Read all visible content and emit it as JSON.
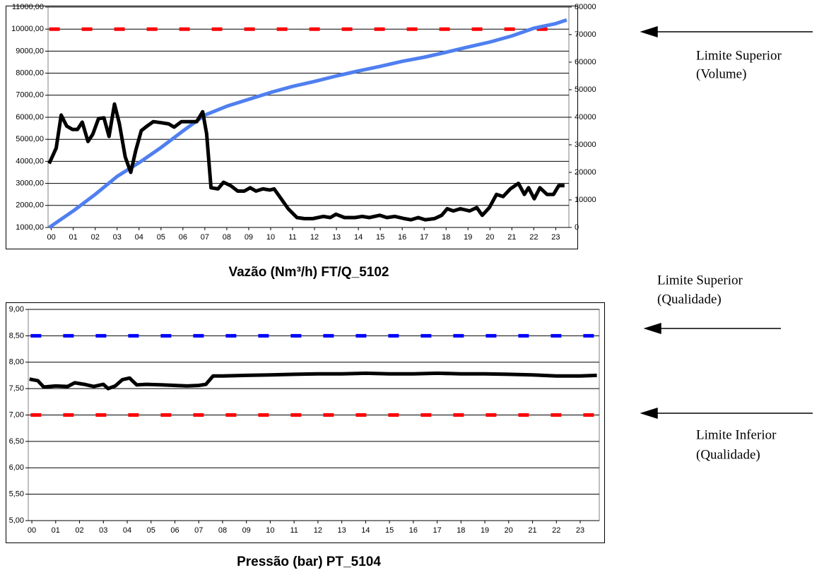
{
  "chart_data": [
    {
      "type": "line",
      "title": "Vazão (Nm³/h) FT/Q_5102",
      "xlim": [
        -0.15,
        23.6
      ],
      "xticks": [
        {
          "value": 0,
          "label": "00"
        },
        {
          "value": 1,
          "label": "01"
        },
        {
          "value": 2,
          "label": "02"
        },
        {
          "value": 3,
          "label": "03"
        },
        {
          "value": 4,
          "label": "04"
        },
        {
          "value": 5,
          "label": "05"
        },
        {
          "value": 6,
          "label": "06"
        },
        {
          "value": 7,
          "label": "07"
        },
        {
          "value": 8,
          "label": "08"
        },
        {
          "value": 9,
          "label": "09"
        },
        {
          "value": 10,
          "label": "10"
        },
        {
          "value": 11,
          "label": "11"
        },
        {
          "value": 12,
          "label": "12"
        },
        {
          "value": 13,
          "label": "13"
        },
        {
          "value": 14,
          "label": "14"
        },
        {
          "value": 15,
          "label": "15"
        },
        {
          "value": 16,
          "label": "16"
        },
        {
          "value": 17,
          "label": "17"
        },
        {
          "value": 18,
          "label": "18"
        },
        {
          "value": 19,
          "label": "19"
        },
        {
          "value": 20,
          "label": "20"
        },
        {
          "value": 21,
          "label": "21"
        },
        {
          "value": 22,
          "label": "22"
        },
        {
          "value": 23,
          "label": "23"
        }
      ],
      "ylim": [
        1000,
        11000
      ],
      "yticks": [
        {
          "value": 1000,
          "label": "1000,00"
        },
        {
          "value": 2000,
          "label": "2000,00"
        },
        {
          "value": 3000,
          "label": "3000,00"
        },
        {
          "value": 4000,
          "label": "4000,00"
        },
        {
          "value": 5000,
          "label": "5000,00"
        },
        {
          "value": 6000,
          "label": "6000,00"
        },
        {
          "value": 7000,
          "label": "7000,00"
        },
        {
          "value": 8000,
          "label": "8000,00"
        },
        {
          "value": 9000,
          "label": "9000,00"
        },
        {
          "value": 10000,
          "label": "10000,00"
        },
        {
          "value": 11000,
          "label": "11000,00"
        }
      ],
      "y2lim": [
        0,
        80000
      ],
      "y2ticks": [
        0,
        10000,
        20000,
        30000,
        40000,
        50000,
        60000,
        70000,
        80000
      ],
      "grid": true,
      "series": [
        {
          "color": "#ff0000",
          "dashed": true,
          "x": [
            -0.1,
            23.5
          ],
          "values": [
            10000,
            10000
          ]
        },
        {
          "color": "#4f7ff0",
          "axis": "y2",
          "x": [
            -0.1,
            1,
            2,
            3,
            4,
            5,
            6,
            7,
            8,
            9,
            10,
            11,
            12,
            13,
            14,
            15,
            16,
            17,
            18,
            19,
            20,
            21,
            22,
            23,
            23.5
          ],
          "values": [
            0,
            6000,
            12000,
            18500,
            23500,
            29000,
            35000,
            40800,
            44000,
            46500,
            49000,
            51200,
            53000,
            55000,
            56800,
            58500,
            60300,
            61800,
            63600,
            65500,
            67300,
            69500,
            72300,
            74000,
            75300
          ]
        },
        {
          "color": "#000000",
          "x": [
            -0.1,
            0.22,
            0.45,
            0.7,
            0.96,
            1.19,
            1.41,
            1.67,
            1.89,
            2.15,
            2.4,
            2.63,
            2.88,
            3.1,
            3.37,
            3.62,
            3.85,
            4.1,
            4.39,
            4.65,
            5.03,
            5.35,
            5.6,
            5.93,
            6.3,
            6.63,
            6.9,
            7.08,
            7.28,
            7.6,
            7.85,
            8.17,
            8.5,
            8.8,
            9.07,
            9.33,
            9.65,
            9.97,
            10.16,
            10.48,
            10.8,
            11.2,
            11.54,
            11.92,
            12.4,
            12.72,
            12.98,
            13.37,
            13.85,
            14.17,
            14.5,
            14.97,
            15.3,
            15.67,
            16.1,
            16.4,
            16.73,
            17.05,
            17.47,
            17.8,
            18.05,
            18.33,
            18.65,
            19.07,
            19.4,
            19.65,
            19.97,
            20.3,
            20.6,
            20.93,
            21.3,
            21.57,
            21.76,
            22.02,
            22.28,
            22.6,
            22.9,
            23.14,
            23.4
          ],
          "values": [
            3900,
            4600,
            6100,
            5600,
            5450,
            5450,
            5780,
            4900,
            5230,
            5940,
            5970,
            5130,
            6600,
            5710,
            4200,
            3500,
            4490,
            5390,
            5620,
            5800,
            5750,
            5700,
            5550,
            5800,
            5800,
            5800,
            6250,
            5250,
            2800,
            2750,
            3050,
            2900,
            2650,
            2650,
            2800,
            2650,
            2750,
            2700,
            2750,
            2300,
            1850,
            1450,
            1400,
            1400,
            1500,
            1450,
            1600,
            1450,
            1450,
            1500,
            1450,
            1550,
            1450,
            1500,
            1400,
            1350,
            1450,
            1350,
            1400,
            1550,
            1850,
            1750,
            1850,
            1750,
            1900,
            1550,
            1900,
            2500,
            2400,
            2750,
            3000,
            2500,
            2800,
            2300,
            2800,
            2500,
            2500,
            2900,
            2900
          ]
        }
      ]
    },
    {
      "type": "line",
      "title": "Pressão (bar) PT_5104",
      "xlim": [
        -0.15,
        23.8
      ],
      "xticks": [
        {
          "value": 0,
          "label": "00"
        },
        {
          "value": 1,
          "label": "01"
        },
        {
          "value": 2,
          "label": "02"
        },
        {
          "value": 3,
          "label": "03"
        },
        {
          "value": 4,
          "label": "04"
        },
        {
          "value": 5,
          "label": "05"
        },
        {
          "value": 6,
          "label": "06"
        },
        {
          "value": 7,
          "label": "07"
        },
        {
          "value": 8,
          "label": "08"
        },
        {
          "value": 9,
          "label": "09"
        },
        {
          "value": 10,
          "label": "10"
        },
        {
          "value": 11,
          "label": "11"
        },
        {
          "value": 12,
          "label": "12"
        },
        {
          "value": 13,
          "label": "13"
        },
        {
          "value": 14,
          "label": "14"
        },
        {
          "value": 15,
          "label": "15"
        },
        {
          "value": 16,
          "label": "16"
        },
        {
          "value": 17,
          "label": "17"
        },
        {
          "value": 18,
          "label": "18"
        },
        {
          "value": 19,
          "label": "19"
        },
        {
          "value": 20,
          "label": "20"
        },
        {
          "value": 21,
          "label": "21"
        },
        {
          "value": 22,
          "label": "22"
        },
        {
          "value": 23,
          "label": "23"
        }
      ],
      "ylim": [
        5,
        9
      ],
      "yticks": [
        {
          "value": 5,
          "label": "5,00"
        },
        {
          "value": 5.5,
          "label": "5,50"
        },
        {
          "value": 6,
          "label": "6,00"
        },
        {
          "value": 6.5,
          "label": "6,50"
        },
        {
          "value": 7,
          "label": "7,00"
        },
        {
          "value": 7.5,
          "label": "7,50"
        },
        {
          "value": 8,
          "label": "8,00"
        },
        {
          "value": 8.5,
          "label": "8,50"
        },
        {
          "value": 9,
          "label": "9,00"
        }
      ],
      "grid": true,
      "series": [
        {
          "color": "#0000ff",
          "dashed": true,
          "x": [
            -0.05,
            23.7
          ],
          "values": [
            8.5,
            8.5
          ]
        },
        {
          "color": "#ff0000",
          "dashed": true,
          "x": [
            -0.05,
            23.7
          ],
          "values": [
            7,
            7
          ]
        },
        {
          "color": "#000000",
          "x": [
            -0.1,
            0.25,
            0.5,
            1,
            1.5,
            1.8,
            2.2,
            2.6,
            3,
            3.2,
            3.5,
            3.8,
            4.1,
            4.4,
            4.8,
            5.5,
            6,
            6.5,
            7,
            7.3,
            7.6,
            8,
            9,
            10,
            11,
            12,
            13,
            14,
            15,
            16,
            17,
            18,
            19,
            20,
            21,
            22,
            23,
            23.7
          ],
          "values": [
            7.68,
            7.65,
            7.53,
            7.55,
            7.54,
            7.61,
            7.58,
            7.54,
            7.58,
            7.5,
            7.55,
            7.67,
            7.7,
            7.57,
            7.58,
            7.57,
            7.56,
            7.55,
            7.56,
            7.58,
            7.74,
            7.74,
            7.75,
            7.76,
            7.77,
            7.78,
            7.78,
            7.79,
            7.78,
            7.78,
            7.79,
            7.78,
            7.78,
            7.77,
            7.76,
            7.74,
            7.74,
            7.75
          ]
        }
      ]
    }
  ],
  "annotations": [
    {
      "lines": [
        "Limite Superior",
        "(Volume)"
      ]
    },
    {
      "lines": [
        "Limite Superior",
        "(Qualidade)"
      ]
    },
    {
      "lines": [
        "Limite Inferior",
        "(Qualidade)"
      ]
    }
  ]
}
